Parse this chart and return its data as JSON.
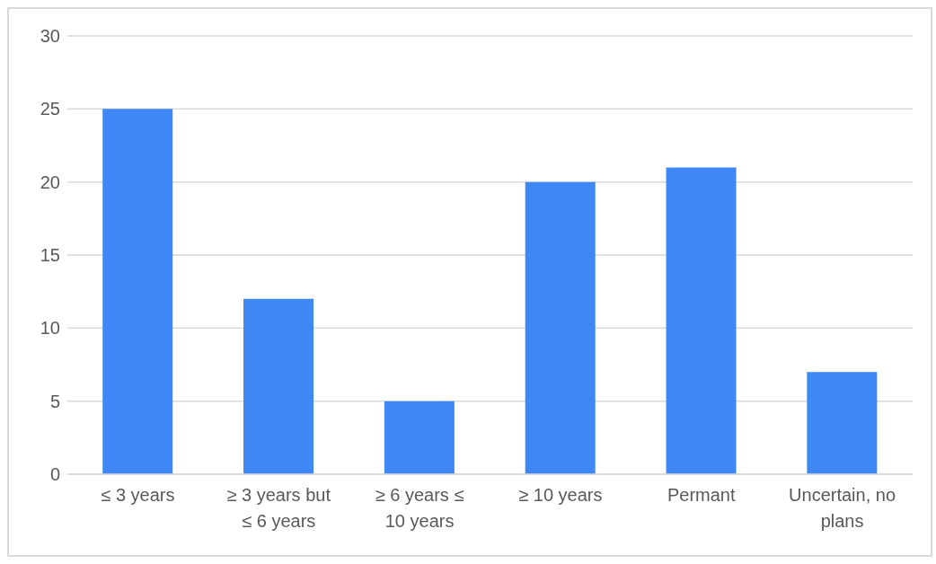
{
  "chart_data": {
    "type": "bar",
    "categories": [
      "≤ 3 years",
      "≥ 3 years but ≤ 6 years",
      "≥ 6 years ≤ 10 years",
      "≥ 10 years",
      "Permant",
      "Uncertain, no plans"
    ],
    "values": [
      25,
      12,
      5,
      20,
      21,
      7
    ],
    "color": "#3f87f5",
    "ylim": [
      0,
      30
    ],
    "yticks": [
      0,
      5,
      10,
      15,
      20,
      25,
      30
    ],
    "grid": "y",
    "legend": false
  }
}
